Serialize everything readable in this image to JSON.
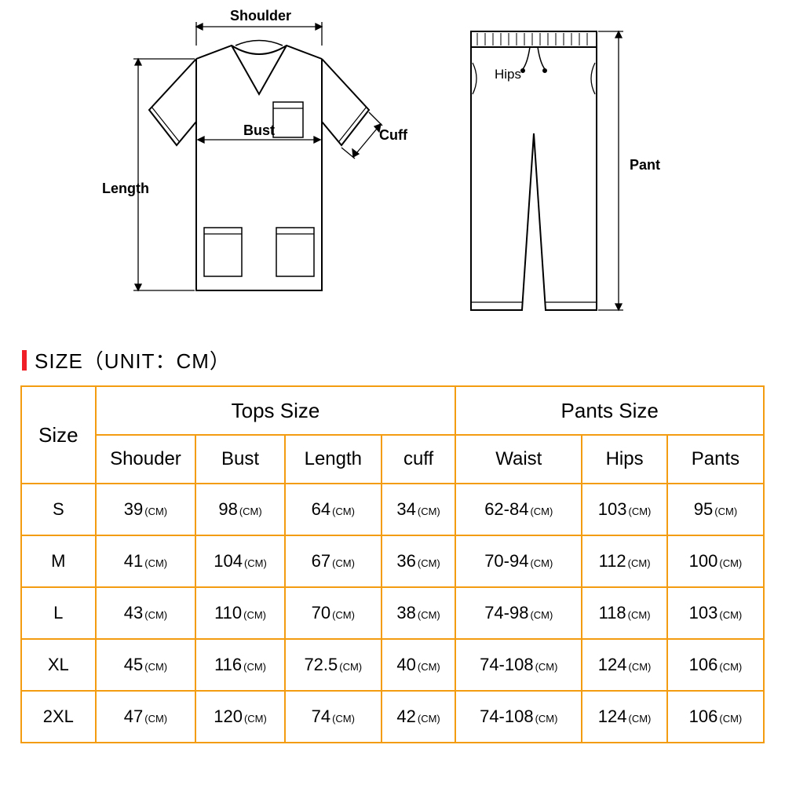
{
  "colors": {
    "accent": "#ef1e27",
    "table_border": "#f39b11",
    "text": "#000000",
    "background": "#ffffff",
    "line": "#000000"
  },
  "title": "SIZE（UNIT：CM）",
  "diagram_labels": {
    "shoulder": "Shoulder",
    "bust": "Bust",
    "length": "Length",
    "cuff": "Cuff",
    "hips": "Hips",
    "pant": "Pant"
  },
  "table": {
    "group_headers": {
      "size": "Size",
      "tops": "Tops Size",
      "pants": "Pants Size"
    },
    "columns": [
      "Shouder",
      "Bust",
      "Length",
      "cuff",
      "Waist",
      "Hips",
      "Pants"
    ],
    "unit": "(CM)",
    "rows": [
      {
        "size": "S",
        "vals": [
          "39",
          "98",
          "64",
          "34",
          "62-84",
          "103",
          "95"
        ]
      },
      {
        "size": "M",
        "vals": [
          "41",
          "104",
          "67",
          "36",
          "70-94",
          "112",
          "100"
        ]
      },
      {
        "size": "L",
        "vals": [
          "43",
          "110",
          "70",
          "38",
          "74-98",
          "118",
          "103"
        ]
      },
      {
        "size": "XL",
        "vals": [
          "45",
          "116",
          "72.5",
          "40",
          "74-108",
          "124",
          "106"
        ]
      },
      {
        "size": "2XL",
        "vals": [
          "47",
          "120",
          "74",
          "42",
          "74-108",
          "124",
          "106"
        ]
      }
    ]
  }
}
